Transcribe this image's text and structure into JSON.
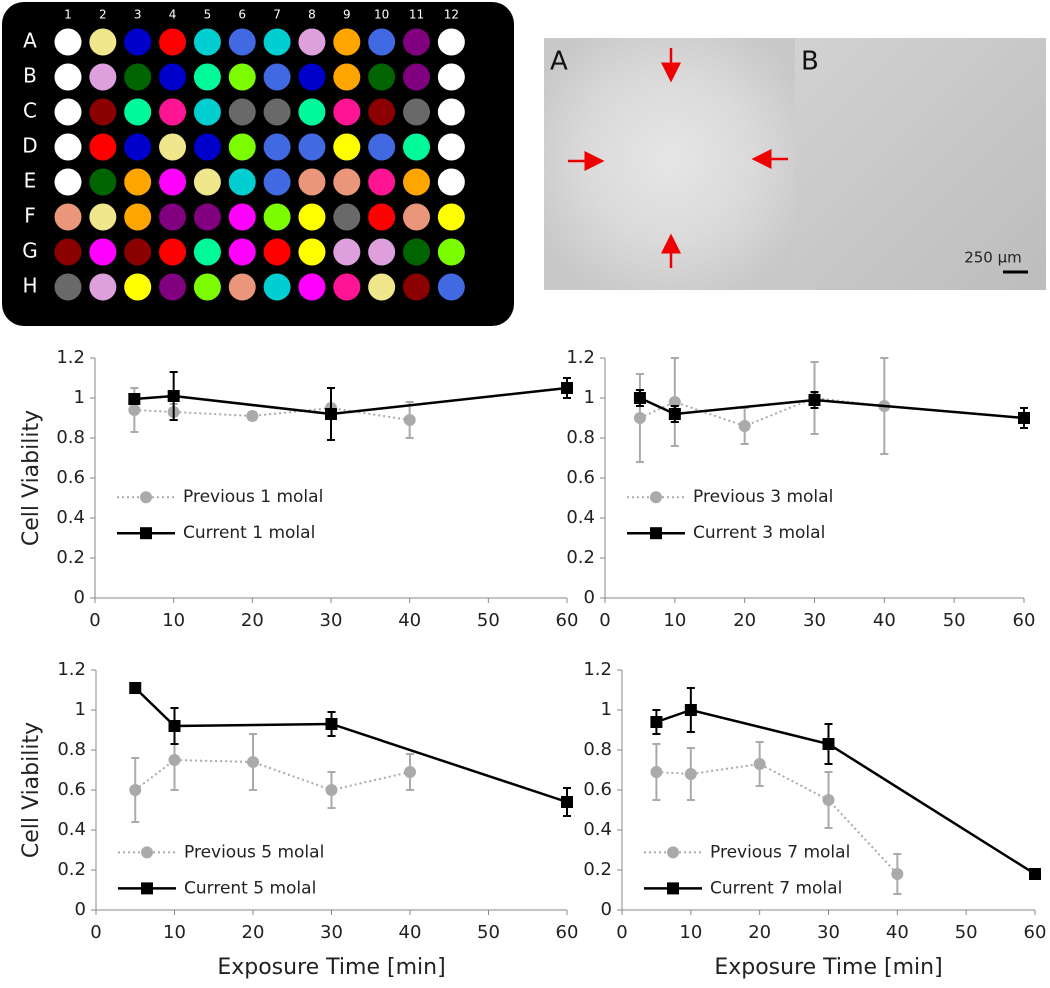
{
  "plate": {
    "columns": [
      "1",
      "2",
      "3",
      "4",
      "5",
      "6",
      "7",
      "8",
      "9",
      "10",
      "11",
      "12"
    ],
    "rows": [
      "A",
      "B",
      "C",
      "D",
      "E",
      "F",
      "G",
      "H"
    ],
    "colors": [
      [
        "#ffffff",
        "#f0e68c",
        "#0000cd",
        "#ff0000",
        "#00ced1",
        "#4169e1",
        "#00ced1",
        "#dda0dd",
        "#ffa500",
        "#4169e1",
        "#800080",
        "#ffffff"
      ],
      [
        "#ffffff",
        "#dda0dd",
        "#006400",
        "#0000cd",
        "#00fa9a",
        "#7cfc00",
        "#4169e1",
        "#0000cd",
        "#ffa500",
        "#006400",
        "#800080",
        "#ffffff"
      ],
      [
        "#ffffff",
        "#8b0000",
        "#00fa9a",
        "#ff1493",
        "#00ced1",
        "#696969",
        "#696969",
        "#00fa9a",
        "#ff1493",
        "#8b0000",
        "#696969",
        "#ffffff"
      ],
      [
        "#ffffff",
        "#ff0000",
        "#0000cd",
        "#f0e68c",
        "#0000cd",
        "#7cfc00",
        "#4169e1",
        "#4169e1",
        "#ffff00",
        "#4169e1",
        "#00fa9a",
        "#ffffff"
      ],
      [
        "#ffffff",
        "#006400",
        "#ffa500",
        "#ff00ff",
        "#f0e68c",
        "#00ced1",
        "#4169e1",
        "#e9967a",
        "#e9967a",
        "#ff1493",
        "#ffa500",
        "#ffffff"
      ],
      [
        "#e9967a",
        "#f0e68c",
        "#ffa500",
        "#800080",
        "#800080",
        "#ff00ff",
        "#7cfc00",
        "#ffff00",
        "#696969",
        "#ff0000",
        "#e9967a",
        "#ffff00"
      ],
      [
        "#8b0000",
        "#ff00ff",
        "#8b0000",
        "#ff0000",
        "#00fa9a",
        "#ff00ff",
        "#ff0000",
        "#ffff00",
        "#dda0dd",
        "#dda0dd",
        "#006400",
        "#7cfc00"
      ],
      [
        "#696969",
        "#dda0dd",
        "#ffff00",
        "#800080",
        "#7cfc00",
        "#e9967a",
        "#00ced1",
        "#ff00ff",
        "#ff1493",
        "#f0e68c",
        "#8b0000",
        "#4169e1"
      ]
    ]
  },
  "micrograph": {
    "panels": [
      "A",
      "B"
    ],
    "scale_bar": "250 µm"
  },
  "chart_data": [
    {
      "type": "line",
      "ylabel": "Cell Viability",
      "xlim": [
        0,
        60
      ],
      "xticks": [
        0,
        10,
        20,
        30,
        40,
        50,
        60
      ],
      "ylim": [
        0,
        1.2
      ],
      "yticks": [
        0,
        0.2,
        0.4,
        0.6,
        0.8,
        1,
        1.2
      ],
      "legend": "center left",
      "series": [
        {
          "name": "Previous 1 molal",
          "color": "#aaaaaa",
          "style": "dotted",
          "marker": "circle",
          "x": [
            5,
            10,
            20,
            30,
            40
          ],
          "values": [
            0.94,
            0.93,
            0.91,
            0.95,
            0.89
          ],
          "errors": [
            0.11,
            0.04,
            0.02,
            0.02,
            0.09
          ]
        },
        {
          "name": "Current 1 molal",
          "color": "#000000",
          "style": "solid",
          "marker": "square",
          "x": [
            5,
            10,
            30,
            60
          ],
          "values": [
            0.995,
            1.01,
            0.92,
            1.05
          ],
          "errors": [
            0.02,
            0.12,
            0.13,
            0.05
          ]
        }
      ]
    },
    {
      "type": "line",
      "xlim": [
        0,
        60
      ],
      "xticks": [
        0,
        10,
        20,
        30,
        40,
        50,
        60
      ],
      "ylim": [
        0,
        1.2
      ],
      "yticks": [
        0,
        0.2,
        0.4,
        0.6,
        0.8,
        1,
        1.2
      ],
      "legend": "center left",
      "series": [
        {
          "name": "Previous 3 molal",
          "color": "#aaaaaa",
          "style": "dotted",
          "marker": "circle",
          "x": [
            5,
            10,
            20,
            30,
            40
          ],
          "values": [
            0.9,
            0.98,
            0.86,
            1.0,
            0.96
          ],
          "errors": [
            0.22,
            0.22,
            0.09,
            0.18,
            0.24
          ]
        },
        {
          "name": "Current 3 molal",
          "color": "#000000",
          "style": "solid",
          "marker": "square",
          "x": [
            5,
            10,
            30,
            60
          ],
          "values": [
            1.0,
            0.92,
            0.99,
            0.9
          ],
          "errors": [
            0.04,
            0.04,
            0.04,
            0.05
          ]
        }
      ]
    },
    {
      "type": "line",
      "ylabel": "Cell Viability",
      "xlabel": "Exposure Time [min]",
      "xlim": [
        0,
        60
      ],
      "xticks": [
        0,
        10,
        20,
        30,
        40,
        50,
        60
      ],
      "ylim": [
        0,
        1.2
      ],
      "yticks": [
        0,
        0.2,
        0.4,
        0.6,
        0.8,
        1,
        1.2
      ],
      "legend": "lower left",
      "series": [
        {
          "name": "Previous 5 molal",
          "color": "#aaaaaa",
          "style": "dotted",
          "marker": "circle",
          "x": [
            5,
            10,
            20,
            30,
            40
          ],
          "values": [
            0.6,
            0.75,
            0.74,
            0.6,
            0.69
          ],
          "errors": [
            0.16,
            0.15,
            0.14,
            0.09,
            0.09
          ]
        },
        {
          "name": "Current 5 molal",
          "color": "#000000",
          "style": "solid",
          "marker": "square",
          "x": [
            5,
            10,
            30,
            60
          ],
          "values": [
            1.11,
            0.92,
            0.93,
            0.54
          ],
          "errors": [
            0.01,
            0.09,
            0.06,
            0.07
          ]
        }
      ]
    },
    {
      "type": "line",
      "xlabel": "Exposure Time [min]",
      "xlim": [
        0,
        60
      ],
      "xticks": [
        0,
        10,
        20,
        30,
        40,
        50,
        60
      ],
      "ylim": [
        0,
        1.2
      ],
      "yticks": [
        0,
        0.2,
        0.4,
        0.6,
        0.8,
        1,
        1.2
      ],
      "legend": "lower left",
      "series": [
        {
          "name": "Previous 7 molal",
          "color": "#aaaaaa",
          "style": "dotted",
          "marker": "circle",
          "x": [
            5,
            10,
            20,
            30,
            40
          ],
          "values": [
            0.69,
            0.68,
            0.73,
            0.55,
            0.18
          ],
          "errors": [
            0.14,
            0.13,
            0.11,
            0.14,
            0.1
          ]
        },
        {
          "name": "Current 7 molal",
          "color": "#000000",
          "style": "solid",
          "marker": "square",
          "x": [
            5,
            10,
            30,
            60
          ],
          "values": [
            0.94,
            1.0,
            0.83,
            0.18
          ],
          "errors": [
            0.06,
            0.11,
            0.1,
            0.01
          ]
        }
      ]
    }
  ]
}
